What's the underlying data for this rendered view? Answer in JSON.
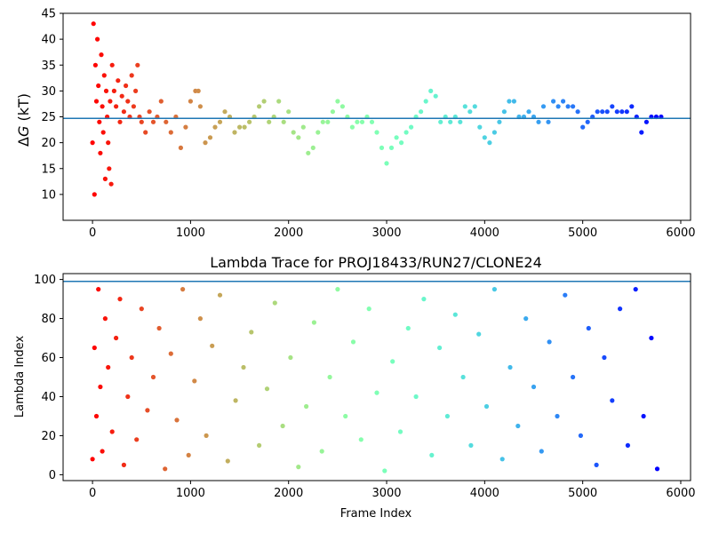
{
  "chart_data": [
    {
      "type": "scatter",
      "title": "",
      "xlabel": "",
      "ylabel_prefix": "Δ",
      "ylabel_var": "G",
      "ylabel_suffix": " (kT)",
      "xlim": [
        -300,
        6100
      ],
      "ylim": [
        5,
        45
      ],
      "xticks": [
        0,
        1000,
        2000,
        3000,
        4000,
        5000,
        6000
      ],
      "xtick_labels": [
        "0",
        "1000",
        "2000",
        "3000",
        "4000",
        "5000",
        "6000"
      ],
      "yticks": [
        10,
        15,
        20,
        25,
        30,
        35,
        40,
        45
      ],
      "ytick_labels": [
        "10",
        "15",
        "20",
        "25",
        "30",
        "35",
        "40",
        "45"
      ],
      "hline": {
        "y": 24.7,
        "color": "#1f77b4"
      },
      "colormap": "rainbow (red at frame 0 → purple at last frame)",
      "grid": false,
      "series": [
        {
          "x": [
            0,
            10,
            20,
            30,
            40,
            50,
            60,
            70,
            80,
            90,
            100,
            110,
            120,
            130,
            140,
            150,
            160,
            170,
            180,
            190,
            200,
            220,
            240,
            260,
            280,
            300,
            320,
            340,
            360,
            380,
            400,
            420,
            440,
            460,
            480,
            500,
            540,
            580,
            620,
            660,
            700,
            750,
            800,
            850,
            900,
            950,
            1000,
            1050,
            1080,
            1100,
            1150,
            1200,
            1250,
            1300,
            1350,
            1400,
            1450,
            1500,
            1550,
            1600,
            1650,
            1700,
            1750,
            1800,
            1850,
            1900,
            1950,
            2000,
            2050,
            2100,
            2150,
            2200,
            2250,
            2300,
            2350,
            2400,
            2450,
            2500,
            2550,
            2600,
            2650,
            2700,
            2750,
            2800,
            2850,
            2900,
            2950,
            3000,
            3050,
            3100,
            3150,
            3200,
            3250,
            3300,
            3350,
            3400,
            3450,
            3500,
            3550,
            3600,
            3650,
            3700,
            3750,
            3800,
            3850,
            3900,
            3950,
            4000,
            4050,
            4100,
            4150,
            4200,
            4250,
            4300,
            4350,
            4400,
            4450,
            4500,
            4550,
            4600,
            4650,
            4700,
            4750,
            4800,
            4850,
            4900,
            4950,
            5000,
            5050,
            5100,
            5150,
            5200,
            5250,
            5300,
            5350,
            5400,
            5450,
            5500,
            5550,
            5600,
            5650,
            5700,
            5750,
            5800
          ],
          "y": [
            20,
            43,
            10,
            35,
            28,
            40,
            31,
            24,
            18,
            37,
            27,
            22,
            33,
            13,
            30,
            25,
            20,
            15,
            28,
            12,
            35,
            30,
            27,
            32,
            24,
            29,
            26,
            31,
            28,
            25,
            33,
            27,
            30,
            35,
            25,
            24,
            22,
            26,
            24,
            25,
            28,
            24,
            22,
            25,
            19,
            23,
            28,
            30,
            30,
            27,
            20,
            21,
            23,
            24,
            26,
            25,
            22,
            23,
            23,
            24,
            25,
            27,
            28,
            24,
            25,
            28,
            24,
            26,
            22,
            21,
            23,
            18,
            19,
            22,
            24,
            24,
            26,
            28,
            27,
            25,
            23,
            24,
            24,
            25,
            24,
            22,
            19,
            16,
            19,
            21,
            20,
            22,
            23,
            25,
            26,
            28,
            30,
            29,
            24,
            25,
            24,
            25,
            24,
            27,
            26,
            27,
            23,
            21,
            20,
            22,
            24,
            26,
            28,
            28,
            25,
            25,
            26,
            25,
            24,
            27,
            24,
            28,
            27,
            28,
            27,
            27,
            26,
            23,
            24,
            25,
            26,
            26,
            26,
            27,
            26,
            26,
            26,
            27,
            25,
            22,
            24,
            25,
            25,
            25
          ]
        }
      ]
    },
    {
      "type": "scatter",
      "title": "Lambda Trace for PROJ18433/RUN27/CLONE24",
      "xlabel": "Frame Index",
      "ylabel": "Lambda Index",
      "xlim": [
        -300,
        6100
      ],
      "ylim": [
        -3,
        103
      ],
      "xticks": [
        0,
        1000,
        2000,
        3000,
        4000,
        5000,
        6000
      ],
      "xtick_labels": [
        "0",
        "1000",
        "2000",
        "3000",
        "4000",
        "5000",
        "6000"
      ],
      "yticks": [
        0,
        20,
        40,
        60,
        80,
        100
      ],
      "ytick_labels": [
        "0",
        "20",
        "40",
        "60",
        "80",
        "100"
      ],
      "hline": {
        "y": 99,
        "color": "#1f77b4"
      },
      "colormap": "rainbow (red at frame 0 → purple at last frame)",
      "grid": false,
      "series": [
        {
          "x": [
            0,
            20,
            40,
            60,
            80,
            100,
            130,
            160,
            200,
            240,
            280,
            320,
            360,
            400,
            450,
            500,
            560,
            620,
            680,
            740,
            800,
            860,
            920,
            980,
            1040,
            1100,
            1160,
            1220,
            1300,
            1380,
            1460,
            1540,
            1620,
            1700,
            1780,
            1860,
            1940,
            2020,
            2100,
            2180,
            2260,
            2340,
            2420,
            2500,
            2580,
            2660,
            2740,
            2820,
            2900,
            2980,
            3060,
            3140,
            3220,
            3300,
            3380,
            3460,
            3540,
            3620,
            3700,
            3780,
            3860,
            3940,
            4020,
            4100,
            4180,
            4260,
            4340,
            4420,
            4500,
            4580,
            4660,
            4740,
            4820,
            4900,
            4980,
            5060,
            5140,
            5220,
            5300,
            5380,
            5460,
            5540,
            5620,
            5700,
            5760
          ],
          "y": [
            8,
            65,
            30,
            95,
            45,
            12,
            80,
            55,
            22,
            70,
            90,
            5,
            40,
            60,
            18,
            85,
            33,
            50,
            75,
            3,
            62,
            28,
            95,
            10,
            48,
            80,
            20,
            66,
            92,
            7,
            38,
            55,
            73,
            15,
            44,
            88,
            25,
            60,
            4,
            35,
            78,
            12,
            50,
            95,
            30,
            68,
            18,
            85,
            42,
            2,
            58,
            22,
            75,
            40,
            90,
            10,
            65,
            30,
            82,
            50,
            15,
            72,
            35,
            95,
            8,
            55,
            25,
            80,
            45,
            12,
            68,
            30,
            92,
            50,
            20,
            75,
            5,
            60,
            38,
            85,
            15,
            95,
            30,
            70,
            3
          ]
        }
      ]
    }
  ]
}
